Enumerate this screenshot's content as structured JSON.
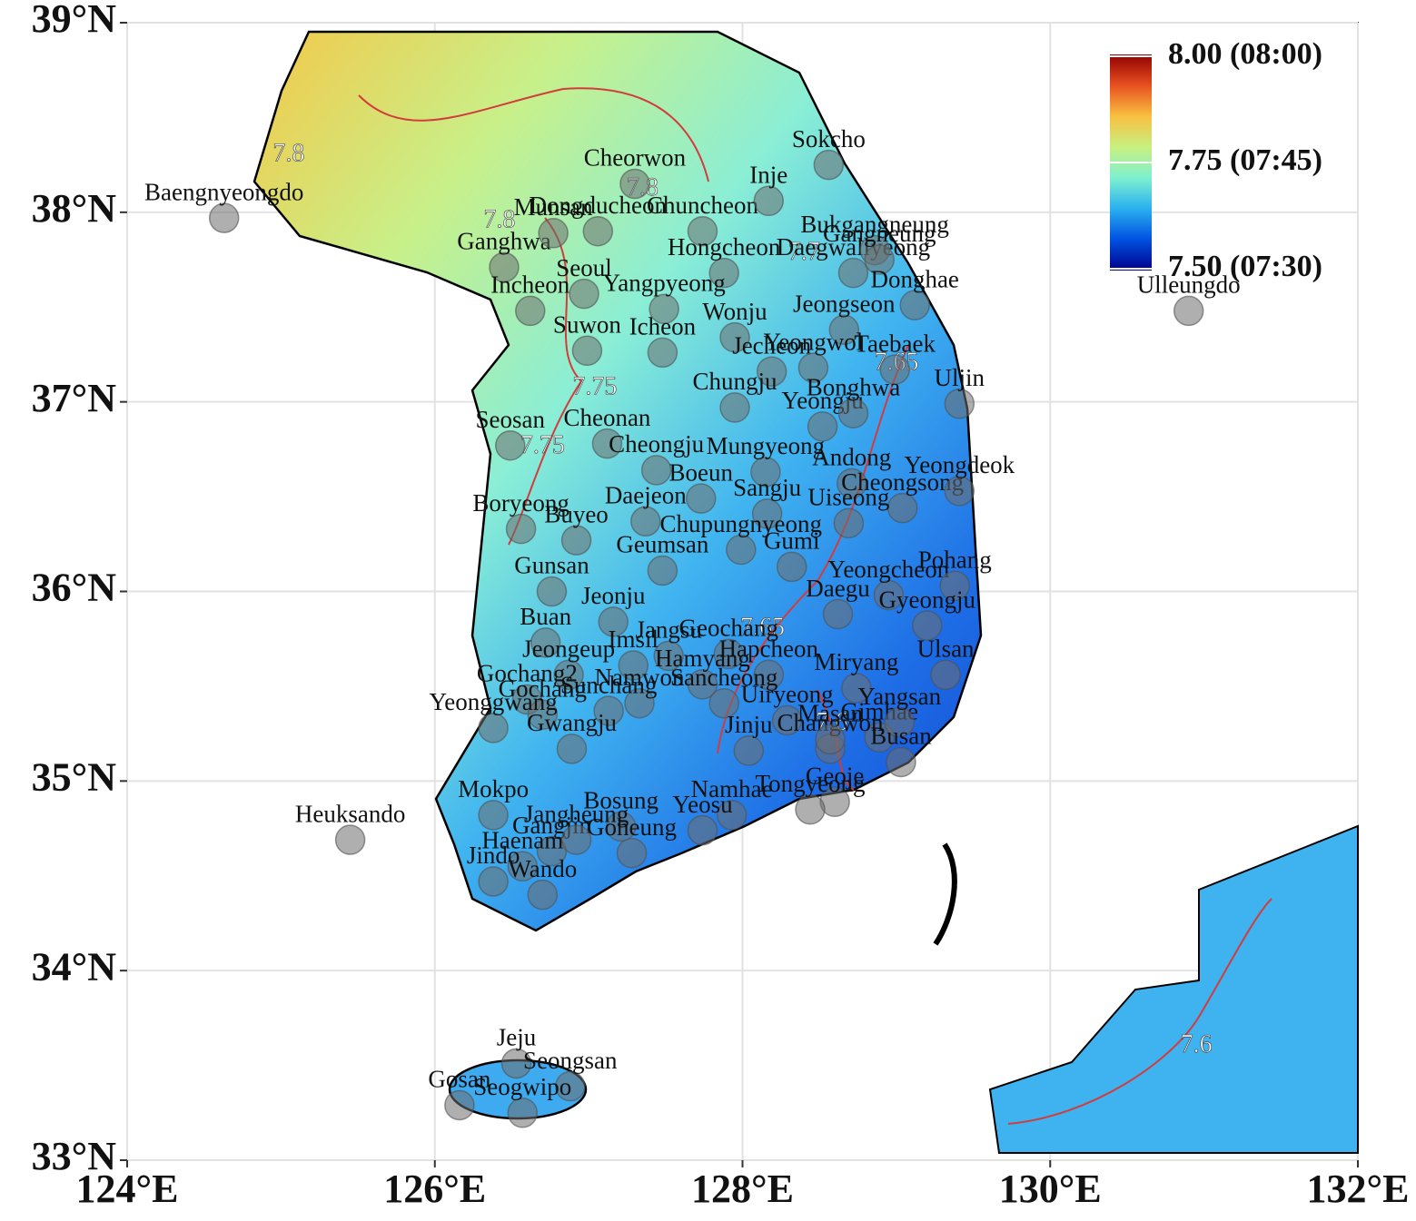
{
  "chart_data": {
    "type": "map",
    "xlim": [
      124,
      132
    ],
    "ylim": [
      33,
      39
    ],
    "xticks": [
      {
        "value": 124,
        "label": "124°E"
      },
      {
        "value": 126,
        "label": "126°E"
      },
      {
        "value": 128,
        "label": "128°E"
      },
      {
        "value": 130,
        "label": "130°E"
      },
      {
        "value": 132,
        "label": "132°E"
      }
    ],
    "yticks": [
      {
        "value": 33,
        "label": "33°N"
      },
      {
        "value": 34,
        "label": "34°N"
      },
      {
        "value": 35,
        "label": "35°N"
      },
      {
        "value": 36,
        "label": "36°N"
      },
      {
        "value": 37,
        "label": "37°N"
      },
      {
        "value": 38,
        "label": "38°N"
      },
      {
        "value": 39,
        "label": "39°N"
      }
    ],
    "grid": true,
    "colorbar": {
      "lim": [
        7.5,
        8.0
      ],
      "colors": [
        "#00008b",
        "#0050e0",
        "#2ab0f0",
        "#7ef0d0",
        "#c8f080",
        "#f8c040",
        "#e85020",
        "#900000"
      ],
      "ticks": [
        {
          "value": 8.0,
          "label": "8.00 (08:00)"
        },
        {
          "value": 7.75,
          "label": "7.75 (07:45)"
        },
        {
          "value": 7.5,
          "label": "7.50 (07:30)"
        }
      ]
    },
    "contour_labels": [
      {
        "text": "7.8",
        "lon": 125.05,
        "lat": 38.3
      },
      {
        "text": "7.8",
        "lon": 127.35,
        "lat": 38.12
      },
      {
        "text": "7.8",
        "lon": 126.42,
        "lat": 37.95
      },
      {
        "text": "7.7",
        "lon": 128.4,
        "lat": 37.78
      },
      {
        "text": "7.75",
        "lon": 127.04,
        "lat": 37.07
      },
      {
        "text": "7.75",
        "lon": 126.7,
        "lat": 36.76
      },
      {
        "text": "7.65",
        "lon": 129.0,
        "lat": 37.2
      },
      {
        "text": "7.65",
        "lon": 128.13,
        "lat": 35.8
      },
      {
        "text": "7.6",
        "lon": 128.58,
        "lat": 35.3
      },
      {
        "text": "7.6",
        "lon": 130.95,
        "lat": 33.6
      }
    ],
    "stations": [
      {
        "name": "Baengnyeongdo",
        "lon": 124.63,
        "lat": 37.97
      },
      {
        "name": "Ganghwa",
        "lon": 126.45,
        "lat": 37.71
      },
      {
        "name": "Munsan",
        "lon": 126.77,
        "lat": 37.89
      },
      {
        "name": "Dongducheon",
        "lon": 127.06,
        "lat": 37.9
      },
      {
        "name": "Cheorwon",
        "lon": 127.3,
        "lat": 38.15
      },
      {
        "name": "Chuncheon",
        "lon": 127.74,
        "lat": 37.9
      },
      {
        "name": "Inje",
        "lon": 128.17,
        "lat": 38.06
      },
      {
        "name": "Sokcho",
        "lon": 128.56,
        "lat": 38.25
      },
      {
        "name": "Daegwallyeong",
        "lon": 128.72,
        "lat": 37.68
      },
      {
        "name": "Bukgangneung",
        "lon": 128.86,
        "lat": 37.8
      },
      {
        "name": "Gangneung",
        "lon": 128.89,
        "lat": 37.75
      },
      {
        "name": "Hongcheon",
        "lon": 127.88,
        "lat": 37.68
      },
      {
        "name": "Seoul",
        "lon": 126.97,
        "lat": 37.57
      },
      {
        "name": "Incheon",
        "lon": 126.62,
        "lat": 37.48
      },
      {
        "name": "Yangpyeong",
        "lon": 127.49,
        "lat": 37.49
      },
      {
        "name": "Wonju",
        "lon": 127.95,
        "lat": 37.34
      },
      {
        "name": "Jeongseon",
        "lon": 128.66,
        "lat": 37.38
      },
      {
        "name": "Donghae",
        "lon": 129.12,
        "lat": 37.51
      },
      {
        "name": "Ulleungdo",
        "lon": 130.9,
        "lat": 37.48
      },
      {
        "name": "Suwon",
        "lon": 126.99,
        "lat": 37.27
      },
      {
        "name": "Icheon",
        "lon": 127.48,
        "lat": 37.26
      },
      {
        "name": "Jecheon",
        "lon": 128.19,
        "lat": 37.16
      },
      {
        "name": "Yeongwol",
        "lon": 128.46,
        "lat": 37.18
      },
      {
        "name": "Taebaek",
        "lon": 128.99,
        "lat": 37.17
      },
      {
        "name": "Cheonan",
        "lon": 127.12,
        "lat": 36.78
      },
      {
        "name": "Chungju",
        "lon": 127.95,
        "lat": 36.97
      },
      {
        "name": "Yeongju",
        "lon": 128.52,
        "lat": 36.87
      },
      {
        "name": "Bonghwa",
        "lon": 128.72,
        "lat": 36.94
      },
      {
        "name": "Uljin",
        "lon": 129.41,
        "lat": 36.99
      },
      {
        "name": "Seosan",
        "lon": 126.49,
        "lat": 36.77
      },
      {
        "name": "Cheongju",
        "lon": 127.44,
        "lat": 36.64
      },
      {
        "name": "Mungyeong",
        "lon": 128.15,
        "lat": 36.63
      },
      {
        "name": "Boeun",
        "lon": 127.73,
        "lat": 36.49
      },
      {
        "name": "Sangju",
        "lon": 128.16,
        "lat": 36.41
      },
      {
        "name": "Andong",
        "lon": 128.71,
        "lat": 36.57
      },
      {
        "name": "Cheongsong",
        "lon": 129.04,
        "lat": 36.44
      },
      {
        "name": "Yeongdeok",
        "lon": 129.41,
        "lat": 36.53
      },
      {
        "name": "Daejeon",
        "lon": 127.37,
        "lat": 36.37
      },
      {
        "name": "Boryeong",
        "lon": 126.56,
        "lat": 36.33
      },
      {
        "name": "Buyeo",
        "lon": 126.92,
        "lat": 36.27
      },
      {
        "name": "Chupungnyeong",
        "lon": 127.99,
        "lat": 36.22
      },
      {
        "name": "Uiseong",
        "lon": 128.69,
        "lat": 36.36
      },
      {
        "name": "Yeongcheon",
        "lon": 128.95,
        "lat": 35.98
      },
      {
        "name": "Geumsan",
        "lon": 127.48,
        "lat": 36.11
      },
      {
        "name": "Gumi",
        "lon": 128.32,
        "lat": 36.13
      },
      {
        "name": "Daegu",
        "lon": 128.62,
        "lat": 35.88
      },
      {
        "name": "Pohang",
        "lon": 129.38,
        "lat": 36.03
      },
      {
        "name": "Gunsan",
        "lon": 126.76,
        "lat": 36.0
      },
      {
        "name": "Jeonju",
        "lon": 127.16,
        "lat": 35.84
      },
      {
        "name": "Jangsu",
        "lon": 127.52,
        "lat": 35.66
      },
      {
        "name": "Geochang",
        "lon": 127.91,
        "lat": 35.67
      },
      {
        "name": "Gyeongju",
        "lon": 129.2,
        "lat": 35.82
      },
      {
        "name": "Buan",
        "lon": 126.72,
        "lat": 35.73
      },
      {
        "name": "Imsil",
        "lon": 127.29,
        "lat": 35.61
      },
      {
        "name": "Hamyang",
        "lon": 127.74,
        "lat": 35.51
      },
      {
        "name": "Hapcheon",
        "lon": 128.17,
        "lat": 35.56
      },
      {
        "name": "Jeongeup",
        "lon": 126.87,
        "lat": 35.56
      },
      {
        "name": "Miryang",
        "lon": 128.74,
        "lat": 35.49
      },
      {
        "name": "Ulsan",
        "lon": 129.32,
        "lat": 35.56
      },
      {
        "name": "Gochang2",
        "lon": 126.6,
        "lat": 35.43
      },
      {
        "name": "Namwon",
        "lon": 127.33,
        "lat": 35.41
      },
      {
        "name": "Sancheong",
        "lon": 127.88,
        "lat": 35.41
      },
      {
        "name": "Sunchang",
        "lon": 127.13,
        "lat": 35.37
      },
      {
        "name": "Gochang",
        "lon": 126.7,
        "lat": 35.35
      },
      {
        "name": "Yeonggwang",
        "lon": 126.38,
        "lat": 35.28
      },
      {
        "name": "Jinju",
        "lon": 128.04,
        "lat": 35.16
      },
      {
        "name": "Uiryeong",
        "lon": 128.29,
        "lat": 35.32
      },
      {
        "name": "Gimhae",
        "lon": 128.89,
        "lat": 35.23
      },
      {
        "name": "Yangsan",
        "lon": 129.02,
        "lat": 35.31
      },
      {
        "name": "Changwon",
        "lon": 128.57,
        "lat": 35.17
      },
      {
        "name": "Busan",
        "lon": 129.03,
        "lat": 35.1
      },
      {
        "name": "Gwangju",
        "lon": 126.89,
        "lat": 35.17
      },
      {
        "name": "Gangjin",
        "lon": 126.76,
        "lat": 34.63
      },
      {
        "name": "Mokpo",
        "lon": 126.38,
        "lat": 34.82
      },
      {
        "name": "Bosung",
        "lon": 127.21,
        "lat": 34.76
      },
      {
        "name": "Jangheung",
        "lon": 126.92,
        "lat": 34.69
      },
      {
        "name": "Namhae",
        "lon": 127.93,
        "lat": 34.82
      },
      {
        "name": "Masan",
        "lon": 128.57,
        "lat": 35.22
      },
      {
        "name": "Geoje",
        "lon": 128.6,
        "lat": 34.89
      },
      {
        "name": "Tongyeong",
        "lon": 128.44,
        "lat": 34.85
      },
      {
        "name": "Yeosu",
        "lon": 127.74,
        "lat": 34.74
      },
      {
        "name": "Goheung",
        "lon": 127.28,
        "lat": 34.62
      },
      {
        "name": "Heuksando",
        "lon": 125.45,
        "lat": 34.69
      },
      {
        "name": "Haenam",
        "lon": 126.57,
        "lat": 34.55
      },
      {
        "name": "Jindo",
        "lon": 126.38,
        "lat": 34.47
      },
      {
        "name": "Wando",
        "lon": 126.7,
        "lat": 34.4
      },
      {
        "name": "Jeju",
        "lon": 126.53,
        "lat": 33.51
      },
      {
        "name": "Seongsan",
        "lon": 126.88,
        "lat": 33.39
      },
      {
        "name": "Gosan",
        "lon": 126.16,
        "lat": 33.29
      },
      {
        "name": "Seogwipo",
        "lon": 126.57,
        "lat": 33.25
      }
    ]
  }
}
